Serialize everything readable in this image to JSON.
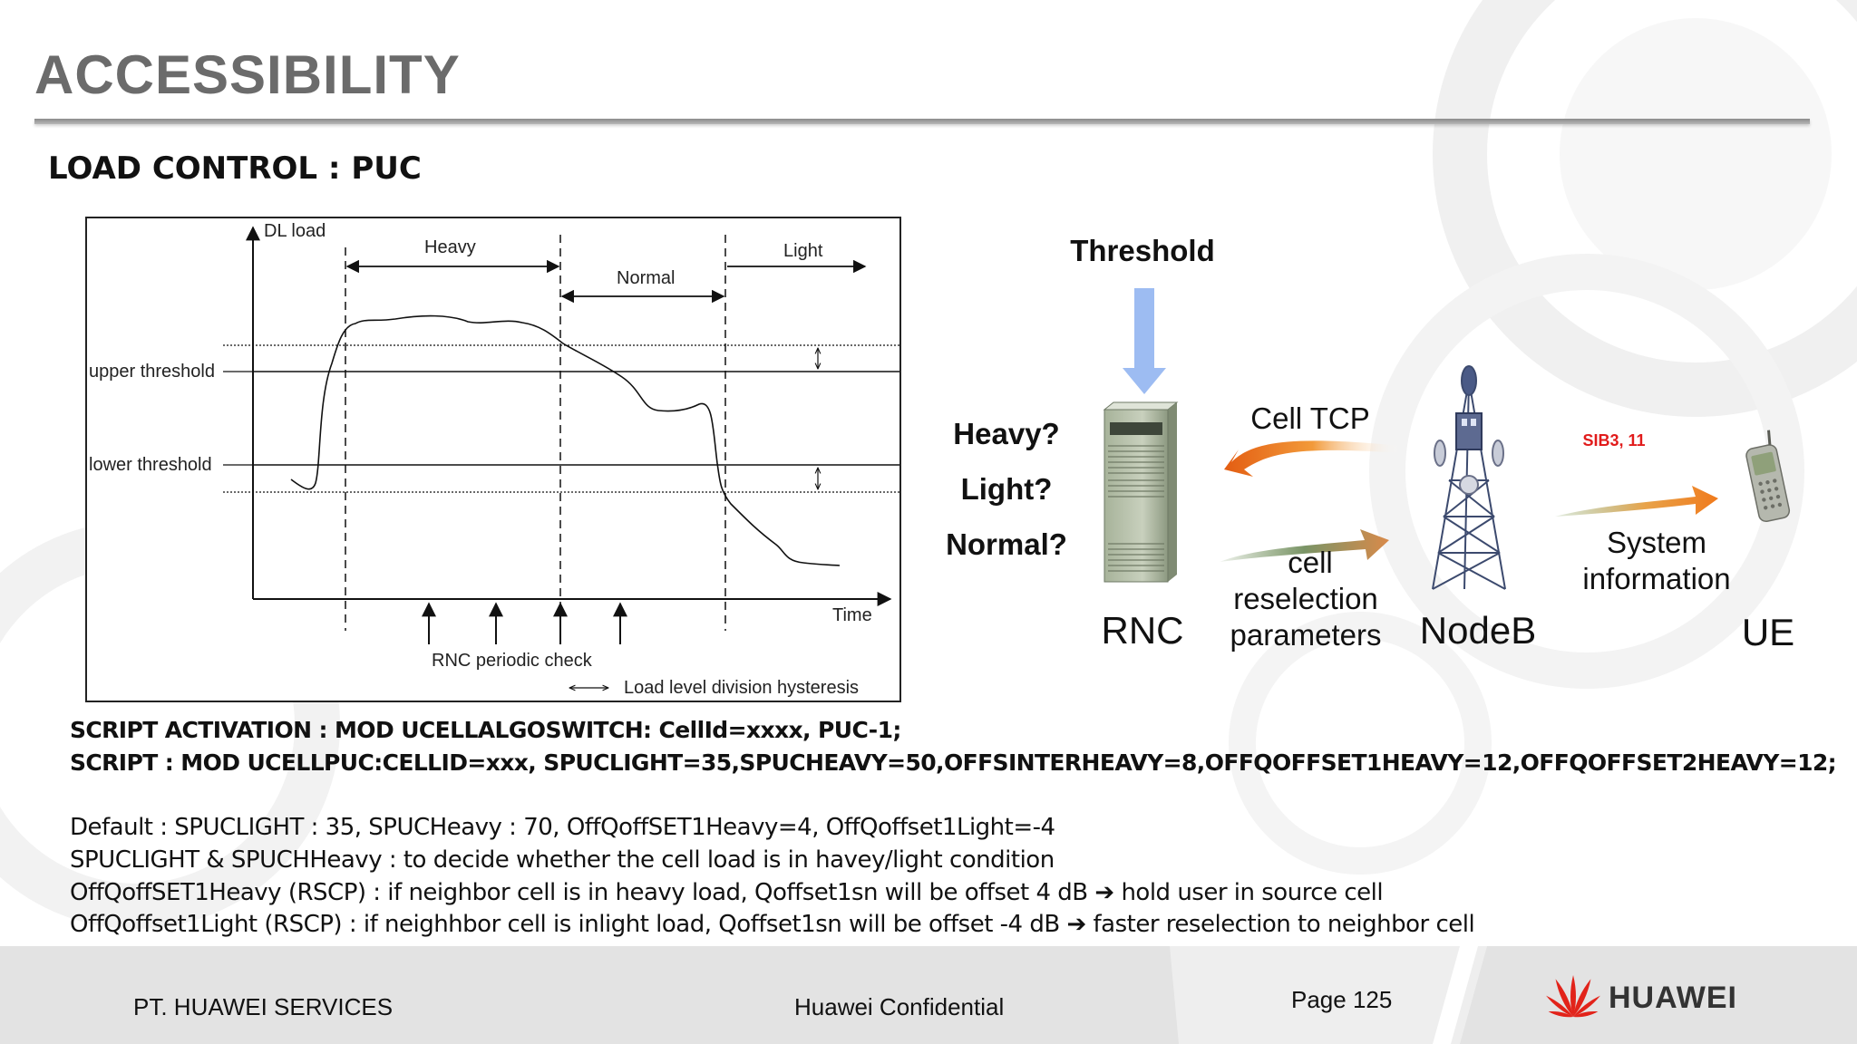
{
  "slide": {
    "title": "ACCESSIBILITY",
    "subtitle": "LOAD CONTROL : PUC"
  },
  "chart": {
    "y_axis_label": "DL load",
    "x_axis_label": "Time",
    "zones": [
      "Heavy",
      "Normal",
      "Light"
    ],
    "thresholds": [
      "upper threshold",
      "lower threshold"
    ],
    "periodic_check_label": "RNC periodic check",
    "hysteresis_label": "Load level division hysteresis"
  },
  "diagram": {
    "threshold_label": "Threshold",
    "questions": [
      "Heavy?",
      "Light?",
      "Normal?"
    ],
    "rnc_label": "RNC",
    "cell_tcp_label": "Cell TCP",
    "cell_reselection_lines": [
      "cell",
      "reselection",
      "parameters"
    ],
    "nodeb_label": "NodeB",
    "sib_label": "SIB3, 11",
    "system_info_lines": [
      "System",
      "information"
    ],
    "ue_label": "UE",
    "colors": {
      "threshold_arrow": "#9dbcf2",
      "orange_arrow": "#f07a1c",
      "green_arrow": "#6f8f5a",
      "sib_red": "#e11b1b"
    }
  },
  "scripts": {
    "activation": "SCRIPT ACTIVATION : MOD UCELLALGOSWITCH: CellId=xxxx, PUC-1;",
    "command": "SCRIPT : MOD UCELLPUC:CELLID=xxx, SPUCLIGHT=35,SPUCHEAVY=50,OFFSINTERHEAVY=8,OFFQOFFSET1HEAVY=12,OFFQOFFSET2HEAVY=12;"
  },
  "notes": {
    "default": "Default  : SPUCLIGHT : 35,  SPUCHeavy : 70, OffQoffSET1Heavy=4, OffQoffset1Light=-4",
    "spuc": "SPUCLIGHT & SPUCHHeavy : to decide whether the cell load is in havey/light condition",
    "heavy": "OffQoffSET1Heavy (RSCP) : if neighbor cell is in heavy load, Qoffset1sn will be offset 4 dB",
    "heavy_result": "hold user in source cell",
    "light": "OffQoffset1Light (RSCP) : if neighhbor cell is inlight load, Qoffset1sn will be offset -4 dB",
    "light_result": "faster reselection to neighbor cell"
  },
  "footer": {
    "company": "PT. HUAWEI SERVICES",
    "confidential": "Huawei Confidential",
    "page": "Page 125",
    "brand": "HUAWEI",
    "brand_color": "#e2231a"
  }
}
